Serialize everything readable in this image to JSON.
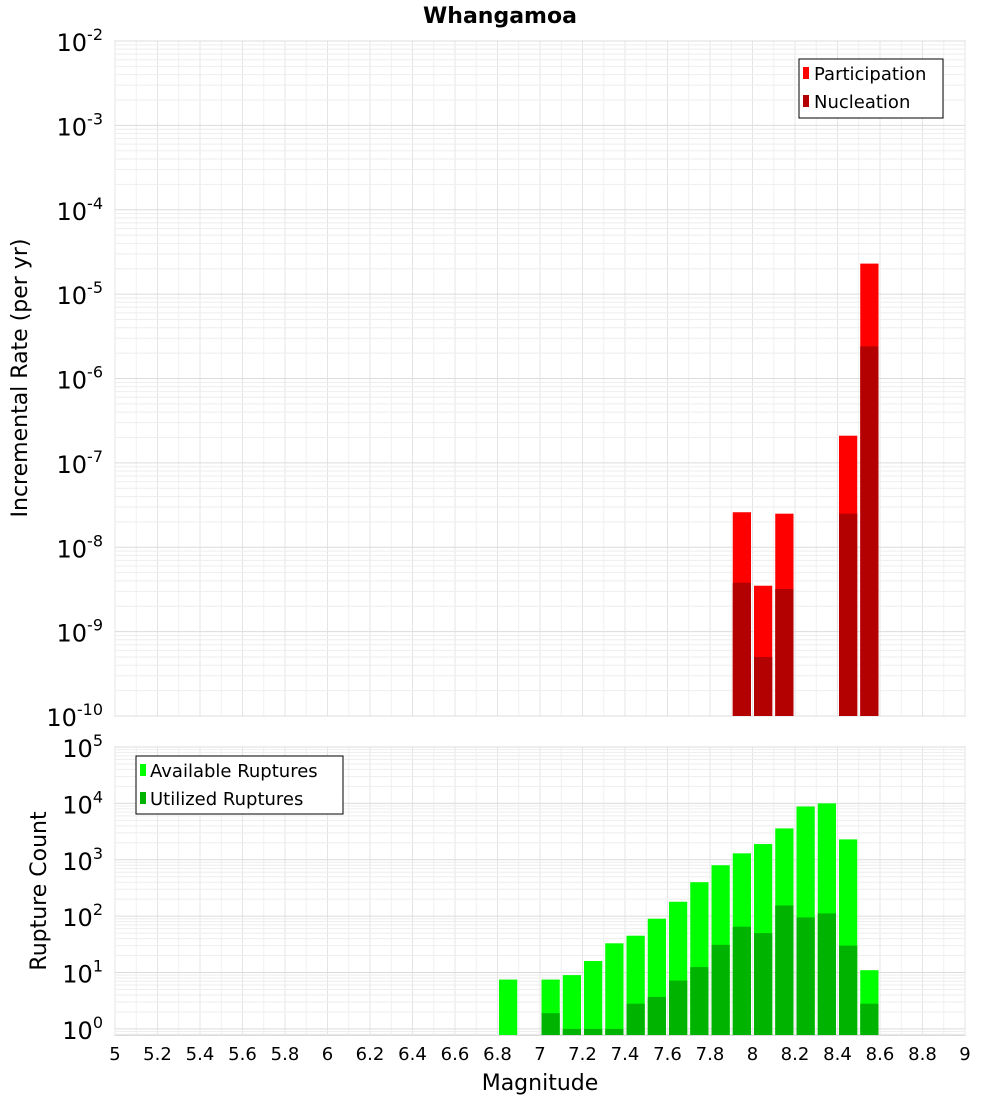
{
  "title": "Whangamoa",
  "chart_data": [
    {
      "type": "bar",
      "panel": "top",
      "ylabel": "Incremental Rate (per yr)",
      "yscale": "log",
      "ylim": [
        1e-10,
        0.01
      ],
      "xlim": [
        5,
        9
      ],
      "grid": true,
      "legend_position": "top-right",
      "series": [
        {
          "name": "Participation",
          "color": "#ff0000",
          "points": [
            [
              7.95,
              2.6e-08
            ],
            [
              8.05,
              3.5e-09
            ],
            [
              8.15,
              2.5e-08
            ],
            [
              8.45,
              2.1e-07
            ],
            [
              8.55,
              2.3e-05
            ]
          ]
        },
        {
          "name": "Nucleation",
          "color": "#b30000",
          "points": [
            [
              7.95,
              3.8e-09
            ],
            [
              8.05,
              5e-10
            ],
            [
              8.15,
              3.2e-09
            ],
            [
              8.45,
              2.5e-08
            ],
            [
              8.55,
              2.4e-06
            ]
          ]
        }
      ],
      "y_ticks": [
        {
          "base": "10",
          "exp": "-2",
          "v": 0.01
        },
        {
          "base": "10",
          "exp": "-3",
          "v": 0.001
        },
        {
          "base": "10",
          "exp": "-4",
          "v": 0.0001
        },
        {
          "base": "10",
          "exp": "-5",
          "v": 1e-05
        },
        {
          "base": "10",
          "exp": "-6",
          "v": 1e-06
        },
        {
          "base": "10",
          "exp": "-7",
          "v": 1e-07
        },
        {
          "base": "10",
          "exp": "-8",
          "v": 1e-08
        },
        {
          "base": "10",
          "exp": "-9",
          "v": 1e-09
        },
        {
          "base": "10",
          "exp": "-10",
          "v": 1e-10
        }
      ]
    },
    {
      "type": "bar",
      "panel": "bottom",
      "xlabel": "Magnitude",
      "ylabel": "Rupture Count",
      "yscale": "log",
      "ylim": [
        0.78,
        100000.0
      ],
      "xlim": [
        5,
        9
      ],
      "grid": true,
      "legend_position": "top-left",
      "series": [
        {
          "name": "Available Ruptures",
          "color": "#00ff00",
          "points": [
            [
              6.85,
              7.5
            ],
            [
              7.05,
              7.5
            ],
            [
              7.15,
              9
            ],
            [
              7.25,
              16
            ],
            [
              7.35,
              33
            ],
            [
              7.45,
              45
            ],
            [
              7.55,
              90
            ],
            [
              7.65,
              180
            ],
            [
              7.75,
              400
            ],
            [
              7.85,
              800
            ],
            [
              7.95,
              1300
            ],
            [
              8.05,
              1900
            ],
            [
              8.15,
              3600
            ],
            [
              8.25,
              8800
            ],
            [
              8.35,
              10000
            ],
            [
              8.45,
              2300
            ],
            [
              8.55,
              11
            ]
          ]
        },
        {
          "name": "Utilized Ruptures",
          "color": "#00b300",
          "points": [
            [
              7.05,
              1.9
            ],
            [
              7.15,
              1.0
            ],
            [
              7.25,
              1.0
            ],
            [
              7.35,
              1.0
            ],
            [
              7.45,
              2.8
            ],
            [
              7.55,
              3.7
            ],
            [
              7.65,
              7.2
            ],
            [
              7.75,
              12.5
            ],
            [
              7.85,
              31
            ],
            [
              7.95,
              65
            ],
            [
              8.05,
              50
            ],
            [
              8.15,
              155
            ],
            [
              8.25,
              95
            ],
            [
              8.35,
              112
            ],
            [
              8.45,
              30
            ],
            [
              8.55,
              2.8
            ]
          ]
        }
      ],
      "y_ticks": [
        {
          "base": "10",
          "exp": "5",
          "v": 100000.0
        },
        {
          "base": "10",
          "exp": "4",
          "v": 10000.0
        },
        {
          "base": "10",
          "exp": "3",
          "v": 1000.0
        },
        {
          "base": "10",
          "exp": "2",
          "v": 100.0
        },
        {
          "base": "10",
          "exp": "1",
          "v": 10.0
        },
        {
          "base": "10",
          "exp": "0",
          "v": 1.0
        }
      ],
      "x_ticks": [
        "5",
        "5.2",
        "5.4",
        "5.6",
        "5.8",
        "6",
        "6.2",
        "6.4",
        "6.6",
        "6.8",
        "7",
        "7.2",
        "7.4",
        "7.6",
        "7.8",
        "8",
        "8.2",
        "8.4",
        "8.6",
        "8.8",
        "9"
      ]
    }
  ]
}
